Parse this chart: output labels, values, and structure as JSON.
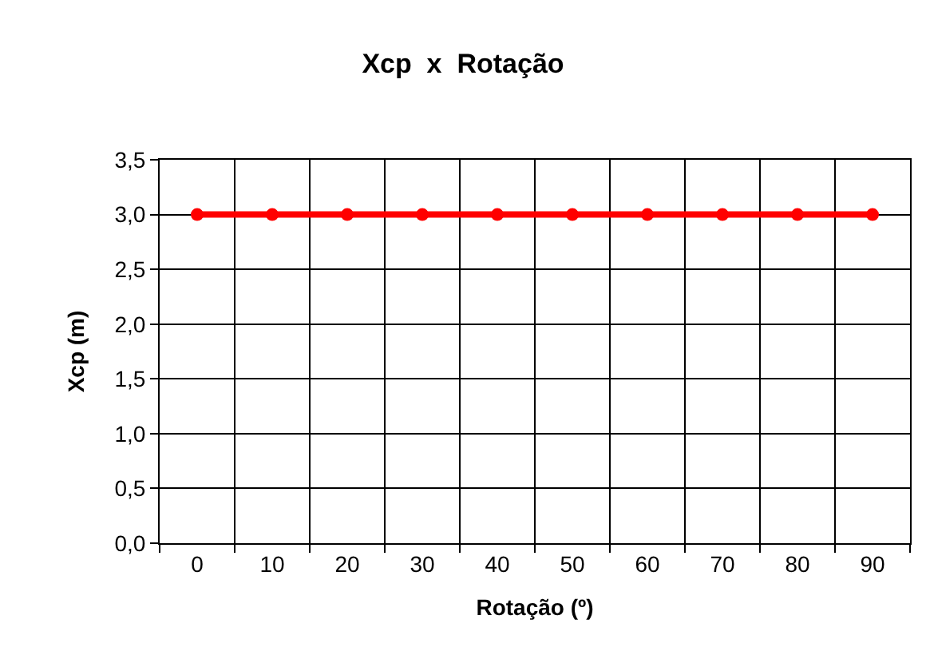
{
  "chart_data": {
    "type": "line",
    "title": "Xcp  x  Rotação",
    "xlabel": "Rotação (º)",
    "ylabel": "Xcp (m)",
    "categories": [
      "0",
      "10",
      "20",
      "30",
      "40",
      "50",
      "60",
      "70",
      "80",
      "90"
    ],
    "series": [
      {
        "color": "#ff0000",
        "values": [
          3.0,
          3.0,
          3.0,
          3.0,
          3.0,
          3.0,
          3.0,
          3.0,
          3.0,
          3.0
        ]
      }
    ],
    "ylim": [
      0,
      3.5
    ],
    "yticks": [
      {
        "value": 0,
        "label": "0,0"
      },
      {
        "value": 0.5,
        "label": "0,5"
      },
      {
        "value": 1,
        "label": "1,0"
      },
      {
        "value": 1.5,
        "label": "1,5"
      },
      {
        "value": 2,
        "label": "2,0"
      },
      {
        "value": 2.5,
        "label": "2,5"
      },
      {
        "value": 3,
        "label": "3,0"
      },
      {
        "value": 3.5,
        "label": "3,5"
      }
    ],
    "grid": true,
    "marker": "circle",
    "line_style": "solid",
    "legend": false
  }
}
